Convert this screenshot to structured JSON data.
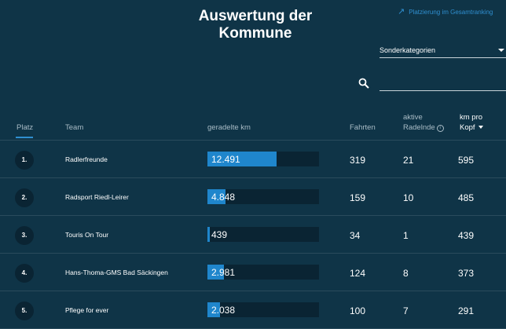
{
  "header": {
    "title": "Auswertung der Kommune",
    "external_link": "Platzierung im Gesamtranking",
    "category_select": "Sonderkategorien",
    "search_placeholder": ""
  },
  "table": {
    "columns": {
      "platz": "Platz",
      "team": "Team",
      "km": "geradelte km",
      "fahrten": "Fahrten",
      "aktive_1": "aktive",
      "aktive_2": "Radelnde",
      "kmpro_1": "km pro",
      "kmpro_2": "Kopf"
    },
    "rows": [
      {
        "rank": "1.",
        "team": "Radlerfreunde",
        "km": "12.491",
        "fahrten": "319",
        "aktive": "21",
        "km_pro_kopf": "595",
        "bar_fraction": 0.62
      },
      {
        "rank": "2.",
        "team": "Radsport Riedl-Leirer",
        "km": "4.848",
        "fahrten": "159",
        "aktive": "10",
        "km_pro_kopf": "485",
        "bar_fraction": 0.16
      },
      {
        "rank": "3.",
        "team": "Touris On Tour",
        "km": "439",
        "fahrten": "34",
        "aktive": "1",
        "km_pro_kopf": "439",
        "bar_fraction": 0.02
      },
      {
        "rank": "4.",
        "team": "Hans-Thoma-GMS Bad Säckingen",
        "km": "2.981",
        "fahrten": "124",
        "aktive": "8",
        "km_pro_kopf": "373",
        "bar_fraction": 0.15
      },
      {
        "rank": "5.",
        "team": "Pflege for ever",
        "km": "2.038",
        "fahrten": "100",
        "aktive": "7",
        "km_pro_kopf": "291",
        "bar_fraction": 0.11
      }
    ]
  },
  "colors": {
    "background": "#0f3447",
    "accent": "#1f86cc",
    "bar_track": "#0a2433"
  }
}
